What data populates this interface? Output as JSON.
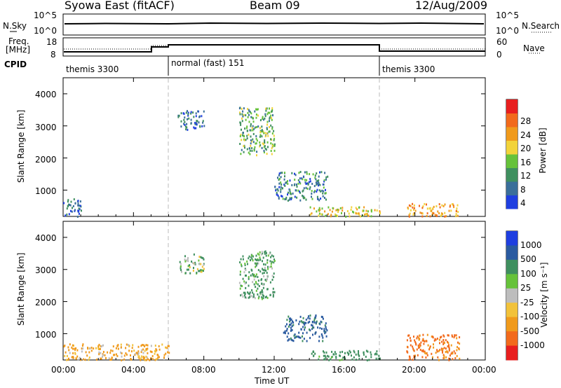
{
  "header": {
    "station": "Syowa East (fitACF)",
    "beam": "Beam 09",
    "date": "12/Aug/2009"
  },
  "top_panels": {
    "nsky_label": "N.Sky",
    "nsearch_label": "N.Search",
    "freq_label_1": "Freq.",
    "freq_label_2": "[MHz]",
    "nave_label": "Nave",
    "cpid_label": "CPID",
    "nsky_ticks": [
      "10^5",
      "10^0"
    ],
    "nsearch_ticks": [
      "10^5",
      "10^0"
    ],
    "freq_ticks": [
      "18",
      "8"
    ],
    "nave_ticks": [
      "60",
      "0"
    ],
    "cpid_segments": [
      "themis 3300",
      "normal (fast) 151",
      "themis 3300"
    ]
  },
  "power_panel": {
    "ylabel": "Slant Range [km]",
    "colorbar_label": "Power [dB]",
    "colorbar_ticks": [
      "28",
      "24",
      "20",
      "16",
      "12",
      "8",
      "4"
    ]
  },
  "velocity_panel": {
    "ylabel": "Slant Range [km]",
    "colorbar_label": "Velocity [m s⁻¹]",
    "colorbar_ticks": [
      "1000",
      "500",
      "100",
      "25",
      "-25",
      "-100",
      "-500",
      "-1000"
    ]
  },
  "xaxis": {
    "label": "Time UT",
    "ticks": [
      "00:00",
      "04:00",
      "08:00",
      "12:00",
      "16:00",
      "20:00",
      "00:00"
    ]
  },
  "yaxis": {
    "ticks": [
      "4000",
      "3000",
      "2000",
      "1000"
    ]
  },
  "colors": {
    "power": [
      "#1f3fe0",
      "#3a6f9a",
      "#3f8f5f",
      "#66c23a",
      "#f2d33a",
      "#f09a1c",
      "#f26a1c",
      "#e81f1f"
    ],
    "velocity": [
      "#1f3fe0",
      "#2a5aa0",
      "#3f8f5f",
      "#66c23a",
      "#bdbdbd",
      "#f2c23a",
      "#f09a1c",
      "#f26a1c",
      "#e81f1f"
    ]
  },
  "chart_data": [
    {
      "type": "heatmap",
      "title": "Beam 09",
      "xlabel": "Time UT",
      "ylabel": "Slant Range [km]",
      "xlim": [
        0,
        24
      ],
      "ylim": [
        180,
        4500
      ],
      "colorbar": {
        "label": "Power [dB]",
        "range": [
          0,
          30
        ]
      },
      "regions": [
        {
          "x": [
            0.0,
            1.0
          ],
          "y": [
            200,
            800
          ],
          "value": 6
        },
        {
          "x": [
            6.5,
            8.0
          ],
          "y": [
            2900,
            3500
          ],
          "value": 6
        },
        {
          "x": [
            10.0,
            12.0
          ],
          "y": [
            2100,
            3600
          ],
          "value": 12
        },
        {
          "x": [
            12.0,
            15.0
          ],
          "y": [
            700,
            1600
          ],
          "value": 8
        },
        {
          "x": [
            14.0,
            18.0
          ],
          "y": [
            200,
            500
          ],
          "value": 18
        },
        {
          "x": [
            19.5,
            22.5
          ],
          "y": [
            200,
            600
          ],
          "value": 22
        }
      ]
    },
    {
      "type": "heatmap",
      "title": "Beam 09",
      "xlabel": "Time UT",
      "ylabel": "Slant Range [km]",
      "xlim": [
        0,
        24
      ],
      "ylim": [
        180,
        4500
      ],
      "colorbar": {
        "label": "Velocity [m s⁻¹]",
        "range": [
          -1000,
          1000
        ]
      },
      "regions": [
        {
          "x": [
            0.0,
            6.0
          ],
          "y": [
            200,
            700
          ],
          "value": -100
        },
        {
          "x": [
            6.5,
            8.0
          ],
          "y": [
            2900,
            3500
          ],
          "value": 50
        },
        {
          "x": [
            10.0,
            12.0
          ],
          "y": [
            2100,
            3600
          ],
          "value": 100
        },
        {
          "x": [
            12.5,
            15.0
          ],
          "y": [
            800,
            1600
          ],
          "value": 300
        },
        {
          "x": [
            14.0,
            18.0
          ],
          "y": [
            200,
            500
          ],
          "value": 150
        },
        {
          "x": [
            19.5,
            22.5
          ],
          "y": [
            200,
            1000
          ],
          "value": -300
        }
      ]
    }
  ]
}
